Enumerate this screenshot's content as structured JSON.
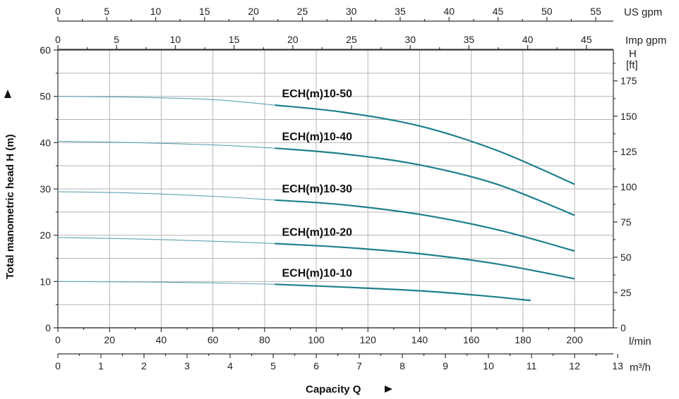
{
  "chart_data": {
    "type": "line",
    "xlabel": "Capacity Q",
    "ylabel": "Total manometric head H (m)",
    "ylim": [
      0,
      60
    ],
    "grid": true,
    "axes": {
      "us_gpm": {
        "unit": "US gpm",
        "ticks": [
          0,
          5,
          10,
          15,
          20,
          25,
          30,
          35,
          40,
          45,
          50,
          55
        ]
      },
      "imp_gpm": {
        "unit": "Imp gpm",
        "ticks": [
          0,
          5,
          10,
          15,
          20,
          25,
          30,
          35,
          40,
          45
        ]
      },
      "l_min": {
        "unit": "l/min",
        "ticks": [
          0,
          20,
          40,
          60,
          80,
          100,
          120,
          140,
          160,
          180,
          200
        ]
      },
      "m3_h": {
        "unit": "m³/h",
        "ticks": [
          0,
          1,
          2,
          3,
          4,
          5,
          6,
          7,
          8,
          9,
          10,
          11,
          12,
          13
        ]
      },
      "head_m": {
        "ticks": [
          0,
          10,
          20,
          30,
          40,
          50,
          60
        ]
      },
      "head_ft": {
        "unit_line1": "H",
        "unit_line2": "[ft]",
        "ticks": [
          0,
          25,
          50,
          75,
          100,
          125,
          150,
          175
        ]
      }
    },
    "series": [
      {
        "name": "ECH(m)10-50",
        "x": [
          0,
          30,
          60,
          84,
          110,
          140,
          170,
          200
        ],
        "y": [
          50.0,
          49.8,
          49.3,
          48.1,
          46.6,
          43.6,
          38.3,
          31.0
        ]
      },
      {
        "name": "ECH(m)10-40",
        "x": [
          0,
          30,
          60,
          84,
          110,
          140,
          170,
          200
        ],
        "y": [
          40.3,
          40.0,
          39.5,
          38.8,
          37.6,
          35.2,
          31.0,
          24.3
        ]
      },
      {
        "name": "ECH(m)10-30",
        "x": [
          0,
          30,
          60,
          84,
          110,
          140,
          170,
          200
        ],
        "y": [
          29.4,
          29.1,
          28.4,
          27.6,
          26.6,
          24.5,
          21.2,
          16.6
        ]
      },
      {
        "name": "ECH(m)10-20",
        "x": [
          0,
          30,
          60,
          84,
          110,
          140,
          170,
          200
        ],
        "y": [
          19.5,
          19.2,
          18.7,
          18.2,
          17.4,
          16.0,
          13.8,
          10.6
        ]
      },
      {
        "name": "ECH(m)10-10",
        "x": [
          0,
          30,
          60,
          84,
          110,
          140,
          165,
          183
        ],
        "y": [
          10.0,
          9.9,
          9.7,
          9.4,
          8.8,
          8.0,
          6.9,
          5.9
        ]
      }
    ]
  }
}
